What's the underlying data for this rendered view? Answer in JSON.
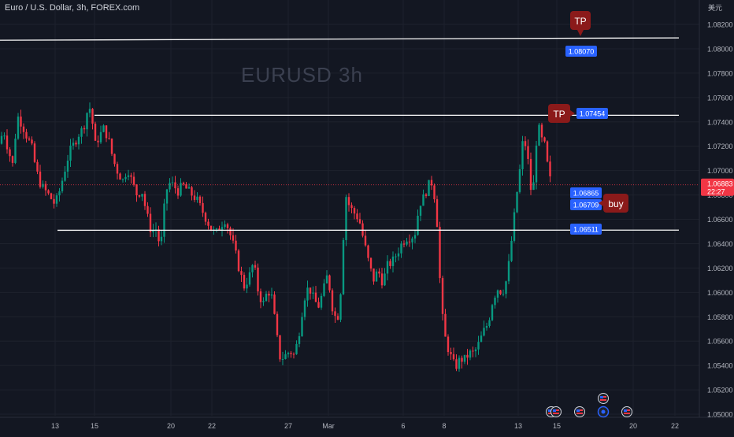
{
  "header": {
    "symbol_title": "Euro / U.S. Dollar, 3h, FOREX.com"
  },
  "watermark": "EURUSD  3h",
  "price_axis": {
    "currency": "美元",
    "ticks": [
      "1.08200",
      "1.08000",
      "1.07800",
      "1.07600",
      "1.07400",
      "1.07200",
      "1.07000",
      "1.06800",
      "1.06600",
      "1.06400",
      "1.06200",
      "1.06000",
      "1.05800",
      "1.05600",
      "1.05400",
      "1.05200",
      "1.05000"
    ],
    "current_price": "1.06883",
    "countdown": "22:27"
  },
  "time_axis": {
    "labels": [
      "13",
      "15",
      "20",
      "22",
      "27",
      "Mar",
      "6",
      "8",
      "13",
      "15",
      "20",
      "22"
    ]
  },
  "colors": {
    "background": "#131722",
    "up": "#089981",
    "down": "#f23645",
    "label_blue": "#2962ff",
    "marker_red": "#8b1a1a",
    "level_line": "#ffffff"
  },
  "annotations": {
    "tp_upper": "TP",
    "tp_mid": "TP",
    "buy": "buy",
    "levels": [
      {
        "price": "1.08070",
        "label": "1.08070"
      },
      {
        "price": "1.07454",
        "label": "1.07454"
      },
      {
        "price": "1.06511",
        "label": "1.06511"
      }
    ],
    "position_labels": [
      "1.06865",
      "1.06709"
    ]
  },
  "chart_data": {
    "type": "candlestick",
    "symbol": "EURUSD",
    "timeframe": "3h",
    "ylim": [
      1.0495,
      1.0835
    ],
    "x_tick_labels": [
      "13",
      "15",
      "20",
      "22",
      "27",
      "Mar",
      "6",
      "8",
      "13",
      "15",
      "20",
      "22"
    ],
    "close_path": [
      [
        0,
        1.0722
      ],
      [
        4,
        1.0735
      ],
      [
        10,
        1.0718
      ],
      [
        16,
        1.0705
      ],
      [
        22,
        1.0745
      ],
      [
        28,
        1.0738
      ],
      [
        34,
        1.0728
      ],
      [
        40,
        1.072
      ],
      [
        46,
        1.07
      ],
      [
        52,
        1.0688
      ],
      [
        58,
        1.0683
      ],
      [
        64,
        1.0678
      ],
      [
        70,
        1.0672
      ],
      [
        76,
        1.0684
      ],
      [
        82,
        1.07
      ],
      [
        88,
        1.0715
      ],
      [
        94,
        1.0722
      ],
      [
        100,
        1.073
      ],
      [
        106,
        1.0735
      ],
      [
        112,
        1.0752
      ],
      [
        116,
        1.075
      ],
      [
        120,
        1.072
      ],
      [
        126,
        1.0728
      ],
      [
        132,
        1.0735
      ],
      [
        138,
        1.0725
      ],
      [
        144,
        1.0708
      ],
      [
        150,
        1.0698
      ],
      [
        156,
        1.0692
      ],
      [
        162,
        1.0702
      ],
      [
        168,
        1.069
      ],
      [
        174,
        1.068
      ],
      [
        180,
        1.0684
      ],
      [
        186,
        1.0665
      ],
      [
        192,
        1.065
      ],
      [
        198,
        1.0652
      ],
      [
        204,
        1.0636
      ],
      [
        210,
        1.068
      ],
      [
        214,
        1.069
      ],
      [
        220,
        1.0688
      ],
      [
        226,
        1.0683
      ],
      [
        232,
        1.0688
      ],
      [
        238,
        1.0684
      ],
      [
        244,
        1.068
      ],
      [
        250,
        1.0676
      ],
      [
        256,
        1.0668
      ],
      [
        262,
        1.066
      ],
      [
        268,
        1.0652
      ],
      [
        274,
        1.0648
      ],
      [
        280,
        1.0655
      ],
      [
        286,
        1.066
      ],
      [
        292,
        1.0648
      ],
      [
        298,
        1.0635
      ],
      [
        304,
        1.0618
      ],
      [
        310,
        1.0605
      ],
      [
        316,
        1.0612
      ],
      [
        322,
        1.0625
      ],
      [
        328,
        1.06
      ],
      [
        334,
        1.059
      ],
      [
        340,
        1.0602
      ],
      [
        346,
        1.0595
      ],
      [
        350,
        1.057
      ],
      [
        356,
        1.0545
      ],
      [
        362,
        1.0548
      ],
      [
        368,
        1.0552
      ],
      [
        374,
        1.0548
      ],
      [
        380,
        1.0568
      ],
      [
        386,
        1.0595
      ],
      [
        392,
        1.0605
      ],
      [
        398,
        1.0595
      ],
      [
        404,
        1.0588
      ],
      [
        410,
        1.06
      ],
      [
        416,
        1.0615
      ],
      [
        422,
        1.0588
      ],
      [
        428,
        1.0575
      ],
      [
        434,
        1.061
      ],
      [
        438,
        1.0682
      ],
      [
        444,
        1.067
      ],
      [
        450,
        1.0665
      ],
      [
        456,
        1.066
      ],
      [
        462,
        1.0642
      ],
      [
        468,
        1.0625
      ],
      [
        474,
        1.061
      ],
      [
        480,
        1.0618
      ],
      [
        486,
        1.0608
      ],
      [
        492,
        1.0622
      ],
      [
        498,
        1.0625
      ],
      [
        504,
        1.0632
      ],
      [
        510,
        1.064
      ],
      [
        516,
        1.0645
      ],
      [
        522,
        1.0645
      ],
      [
        528,
        1.065
      ],
      [
        532,
        1.0672
      ],
      [
        538,
        1.0678
      ],
      [
        544,
        1.0688
      ],
      [
        548,
        1.069
      ],
      [
        552,
        1.0678
      ],
      [
        556,
        1.065
      ],
      [
        560,
        1.0588
      ],
      [
        566,
        1.056
      ],
      [
        572,
        1.0548
      ],
      [
        578,
        1.0538
      ],
      [
        584,
        1.0545
      ],
      [
        590,
        1.0545
      ],
      [
        596,
        1.055
      ],
      [
        602,
        1.055
      ],
      [
        608,
        1.0558
      ],
      [
        614,
        1.0568
      ],
      [
        620,
        1.0575
      ],
      [
        626,
        1.0595
      ],
      [
        632,
        1.0603
      ],
      [
        638,
        1.06
      ],
      [
        644,
        1.0612
      ],
      [
        650,
        1.0645
      ],
      [
        656,
        1.068
      ],
      [
        660,
        1.07
      ],
      [
        664,
        1.0725
      ],
      [
        668,
        1.072
      ],
      [
        672,
        1.07
      ],
      [
        676,
        1.067
      ],
      [
        680,
        1.072
      ],
      [
        684,
        1.0735
      ],
      [
        688,
        1.0725
      ],
      [
        692,
        1.072
      ],
      [
        696,
        1.07
      ],
      [
        700,
        1.0688
      ]
    ],
    "horizontal_levels": [
      1.0807,
      1.07454,
      1.06511
    ],
    "current_price": 1.06883
  }
}
